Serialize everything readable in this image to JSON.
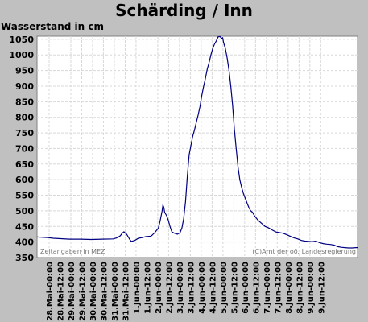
{
  "chart_data": {
    "type": "line",
    "title": "Schärding / Inn",
    "ylabel": "Wasserstand in cm",
    "ylim": [
      350,
      1060
    ],
    "yticks": [
      350,
      400,
      450,
      500,
      550,
      600,
      650,
      700,
      750,
      800,
      850,
      900,
      950,
      1000,
      1050
    ],
    "x_tick_labels": [
      "28.Mai-00:00",
      "28.Mai-12:00",
      "29.Mai-00:00",
      "29.Mai-12:00",
      "30.Mai-00:00",
      "30.Mai-12:00",
      "31.Mai-00:00",
      "31.Mai-12:00",
      "1.Jun-00:00",
      "1.Jun-12:00",
      "2.Jun-00:00",
      "2.Jun-12:00",
      "3.Jun-00:00",
      "3.Jun-12:00",
      "4.Jun-00:00",
      "4.Jun-12:00",
      "5.Jun-00:00",
      "5.Jun-12:00",
      "6.Jun-00:00",
      "6.Jun-12:00",
      "7.Jun-00:00",
      "7.Jun-12:00",
      "8.Jun-00:00",
      "8.Jun-12:00",
      "9.Jun-00:00",
      "9.Jun-12:00"
    ],
    "x_unit": "hours since 28.Mai 00:00",
    "grid": true,
    "series": [
      {
        "color": "#000080",
        "points": [
          [
            0,
            416
          ],
          [
            6,
            415
          ],
          [
            12,
            414
          ],
          [
            18,
            412
          ],
          [
            24,
            411
          ],
          [
            36,
            409
          ],
          [
            48,
            409
          ],
          [
            60,
            408
          ],
          [
            72,
            409
          ],
          [
            84,
            410
          ],
          [
            88,
            413
          ],
          [
            92,
            420
          ],
          [
            94,
            428
          ],
          [
            96,
            433
          ],
          [
            99,
            425
          ],
          [
            102,
            410
          ],
          [
            104,
            402
          ],
          [
            108,
            405
          ],
          [
            112,
            412
          ],
          [
            116,
            414
          ],
          [
            120,
            417
          ],
          [
            126,
            419
          ],
          [
            130,
            430
          ],
          [
            134,
            445
          ],
          [
            136,
            468
          ],
          [
            138,
            498
          ],
          [
            139,
            518
          ],
          [
            140,
            512
          ],
          [
            141,
            495
          ],
          [
            143,
            485
          ],
          [
            145,
            470
          ],
          [
            147,
            448
          ],
          [
            149,
            432
          ],
          [
            152,
            428
          ],
          [
            155,
            425
          ],
          [
            158,
            430
          ],
          [
            160,
            445
          ],
          [
            162,
            475
          ],
          [
            164,
            530
          ],
          [
            166,
            610
          ],
          [
            168,
            680
          ],
          [
            170,
            710
          ],
          [
            172,
            740
          ],
          [
            174,
            760
          ],
          [
            176,
            785
          ],
          [
            178,
            808
          ],
          [
            180,
            835
          ],
          [
            182,
            870
          ],
          [
            184,
            900
          ],
          [
            186,
            925
          ],
          [
            188,
            955
          ],
          [
            190,
            975
          ],
          [
            192,
            1000
          ],
          [
            194,
            1020
          ],
          [
            196,
            1035
          ],
          [
            198,
            1045
          ],
          [
            200,
            1058
          ],
          [
            202,
            1059
          ],
          [
            204,
            1053
          ],
          [
            205,
            1055
          ],
          [
            206,
            1040
          ],
          [
            208,
            1020
          ],
          [
            210,
            990
          ],
          [
            212,
            950
          ],
          [
            214,
            900
          ],
          [
            216,
            840
          ],
          [
            218,
            760
          ],
          [
            220,
            700
          ],
          [
            222,
            640
          ],
          [
            224,
            600
          ],
          [
            226,
            575
          ],
          [
            228,
            555
          ],
          [
            230,
            540
          ],
          [
            232,
            525
          ],
          [
            234,
            510
          ],
          [
            236,
            500
          ],
          [
            238,
            495
          ],
          [
            240,
            485
          ],
          [
            244,
            470
          ],
          [
            248,
            460
          ],
          [
            252,
            450
          ],
          [
            256,
            445
          ],
          [
            260,
            438
          ],
          [
            264,
            432
          ],
          [
            268,
            430
          ],
          [
            272,
            428
          ],
          [
            276,
            423
          ],
          [
            280,
            418
          ],
          [
            284,
            413
          ],
          [
            288,
            410
          ],
          [
            292,
            405
          ],
          [
            296,
            403
          ],
          [
            300,
            402
          ],
          [
            304,
            401
          ],
          [
            308,
            403
          ],
          [
            312,
            398
          ],
          [
            316,
            395
          ],
          [
            320,
            393
          ],
          [
            324,
            392
          ],
          [
            328,
            390
          ],
          [
            332,
            385
          ],
          [
            336,
            383
          ],
          [
            340,
            382
          ],
          [
            344,
            381
          ],
          [
            348,
            381
          ],
          [
            352,
            382
          ],
          [
            354,
            382
          ]
        ]
      }
    ],
    "annotations": {
      "left": "Zeitangaben in MEZ",
      "right": "(C)Amt der oö. Landesregierung"
    }
  }
}
